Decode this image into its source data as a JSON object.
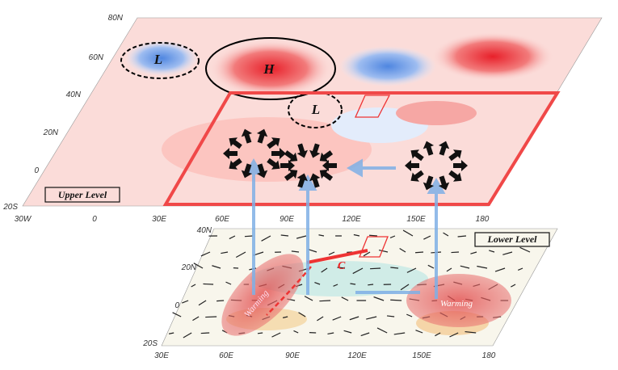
{
  "upper_panel": {
    "label": "Upper Level",
    "lat_labels": [
      "80N",
      "60N",
      "40N",
      "20N",
      "0",
      "20S"
    ],
    "lon_labels": [
      "30W",
      "0",
      "30E",
      "60E",
      "90E",
      "120E",
      "150E",
      "180"
    ],
    "systems": [
      "L",
      "H",
      "L"
    ]
  },
  "lower_panel": {
    "label": "Lower Level",
    "lat_labels": [
      "40N",
      "20N",
      "0",
      "20S"
    ],
    "lon_labels": [
      "30E",
      "60E",
      "90E",
      "120E",
      "150E",
      "180"
    ],
    "warming_labels": [
      "Warming",
      "Warming"
    ],
    "circulation_label": "C"
  }
}
